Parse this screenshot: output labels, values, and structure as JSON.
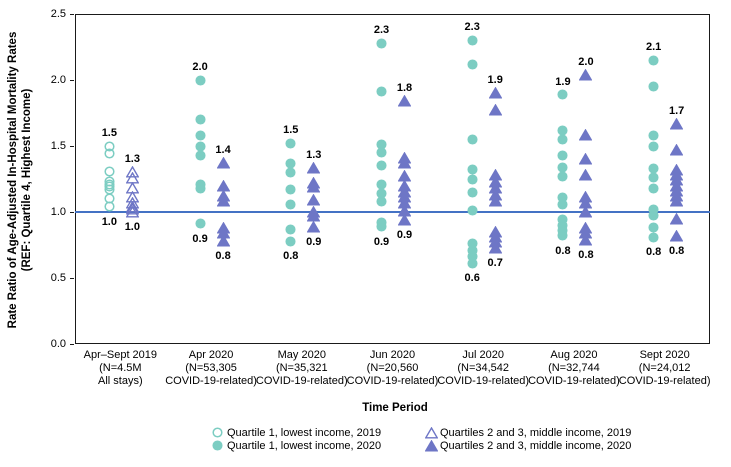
{
  "chart_data": {
    "type": "scatter",
    "ylabel": "Rate Ratio of Age-Adjusted In-Hospital Mortality Rates (REF: Quartile 4, Highest Income)",
    "ylabel_line1": "Rate Ratio of Age-Adjusted In-Hospital Mortality Rates",
    "ylabel_line2": "(REF: Quartile 4, Highest Income)",
    "xlabel": "Time Period",
    "ylim": [
      0.0,
      2.5
    ],
    "yticks": [
      "0.0",
      "0.5",
      "1.0",
      "1.5",
      "2.0",
      "2.5"
    ],
    "ref_line_value": 1.0,
    "grid": false,
    "categories": [
      {
        "label_lines": [
          "Apr–Sept 2019",
          "(N=4.5M",
          "All stays)"
        ],
        "circle": {
          "series": "Quartile 1, lowest income, 2019",
          "open": true,
          "values": [
            1.5,
            1.44,
            1.31,
            1.23,
            1.21,
            1.19,
            1.17,
            1.1,
            1.04
          ],
          "max_label": "1.5",
          "min_label": "1.0"
        },
        "triangle": {
          "series": "Quartiles 2 and 3, middle income, 2019",
          "open": true,
          "values": [
            1.3,
            1.26,
            1.18,
            1.11,
            1.07,
            1.04,
            1.02,
            1.0
          ],
          "max_label": "1.3",
          "min_label": "1.0"
        }
      },
      {
        "label_lines": [
          "Apr 2020",
          "(N=53,305",
          "COVID-19-related)"
        ],
        "circle": {
          "series": "Quartile 1, lowest income, 2020",
          "open": false,
          "values": [
            2.0,
            1.7,
            1.58,
            1.5,
            1.43,
            1.21,
            1.18,
            0.91
          ],
          "max_label": "2.0",
          "min_label": "0.9"
        },
        "triangle": {
          "series": "Quartiles 2 and 3, middle income, 2020",
          "open": false,
          "values": [
            1.37,
            1.2,
            1.12,
            1.08,
            0.88,
            0.84,
            0.78
          ],
          "max_label": "1.4",
          "min_label": "0.8"
        }
      },
      {
        "label_lines": [
          "May 2020",
          "(N=35,321",
          "COVID-19-related)"
        ],
        "circle": {
          "series": "Quartile 1, lowest income, 2020",
          "open": false,
          "values": [
            1.52,
            1.37,
            1.3,
            1.17,
            1.06,
            0.87,
            0.78
          ],
          "max_label": "1.5",
          "min_label": "0.8"
        },
        "triangle": {
          "series": "Quartiles 2 and 3, middle income, 2020",
          "open": false,
          "values": [
            1.33,
            1.22,
            1.19,
            1.09,
            1.0,
            0.97,
            0.89
          ],
          "max_label": "1.3",
          "min_label": "0.9"
        }
      },
      {
        "label_lines": [
          "Jun 2020",
          "(N=20,560",
          "COVID-19-related)"
        ],
        "circle": {
          "series": "Quartile 1, lowest income, 2020",
          "open": false,
          "values": [
            2.28,
            1.91,
            1.51,
            1.45,
            1.35,
            1.21,
            1.14,
            1.08,
            0.92,
            0.89
          ],
          "max_label": "2.3",
          "min_label": "0.9"
        },
        "triangle": {
          "series": "Quartiles 2 and 3, middle income, 2020",
          "open": false,
          "values": [
            1.84,
            1.41,
            1.37,
            1.27,
            1.2,
            1.15,
            1.11,
            1.07,
            1.01,
            0.94
          ],
          "max_label": "1.8",
          "min_label": "0.9"
        }
      },
      {
        "label_lines": [
          "Jul 2020",
          "(N=34,542",
          "COVID-19-related)"
        ],
        "circle": {
          "series": "Quartile 1, lowest income, 2020",
          "open": false,
          "values": [
            2.3,
            2.12,
            1.55,
            1.32,
            1.25,
            1.15,
            1.01,
            0.76,
            0.71,
            0.66,
            0.61
          ],
          "max_label": "2.3",
          "min_label": "0.6"
        },
        "triangle": {
          "series": "Quartiles 2 and 3, middle income, 2020",
          "open": false,
          "values": [
            1.9,
            1.77,
            1.28,
            1.23,
            1.18,
            1.13,
            1.08,
            0.85,
            0.81,
            0.77,
            0.73
          ],
          "max_label": "1.9",
          "min_label": "0.7"
        }
      },
      {
        "label_lines": [
          "Aug 2020",
          "(N=32,744",
          "COVID-19-related)"
        ],
        "circle": {
          "series": "Quartile 1, lowest income, 2020",
          "open": false,
          "values": [
            1.89,
            1.62,
            1.55,
            1.43,
            1.34,
            1.27,
            1.11,
            1.06,
            0.94,
            0.9,
            0.86,
            0.82
          ],
          "max_label": "1.9",
          "min_label": "0.8"
        },
        "triangle": {
          "series": "Quartiles 2 and 3, middle income, 2020",
          "open": false,
          "values": [
            2.04,
            1.58,
            1.4,
            1.28,
            1.11,
            1.07,
            1.0,
            0.88,
            0.84,
            0.79
          ],
          "max_label": "2.0",
          "min_label": "0.8"
        }
      },
      {
        "label_lines": [
          "Sept 2020",
          "(N=24,012",
          "COVID-19-related)"
        ],
        "circle": {
          "series": "Quartile 1, lowest income, 2020",
          "open": false,
          "values": [
            2.15,
            1.95,
            1.58,
            1.5,
            1.33,
            1.26,
            1.18,
            1.02,
            0.97,
            0.88,
            0.81
          ],
          "max_label": "2.1",
          "min_label": "0.8"
        },
        "triangle": {
          "series": "Quartiles 2 and 3, middle income, 2020",
          "open": false,
          "values": [
            1.67,
            1.47,
            1.32,
            1.28,
            1.24,
            1.2,
            1.16,
            1.12,
            1.08,
            0.95,
            0.82
          ],
          "max_label": "1.7",
          "min_label": "0.8"
        }
      }
    ],
    "legend": [
      {
        "marker": "circle-open",
        "label": "Quartile 1, lowest income, 2019"
      },
      {
        "marker": "circle-filled",
        "label": "Quartile 1, lowest income, 2020"
      },
      {
        "marker": "triangle-open",
        "label": "Quartiles 2 and 3, middle income, 2019"
      },
      {
        "marker": "triangle-filled",
        "label": "Quartiles 2 and 3, middle income, 2020"
      }
    ],
    "legend_position": "bottom",
    "colors": {
      "quartile1": "#7CCDC2",
      "quartiles23": "#6E76C6",
      "ref_line": "#4472C4",
      "axis": "#1a1a1a"
    }
  }
}
